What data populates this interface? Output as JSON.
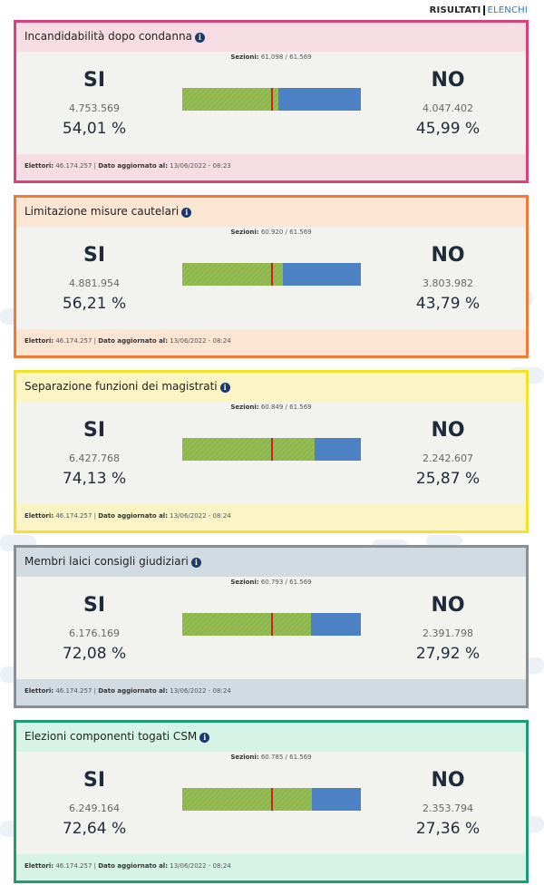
{
  "nav": {
    "active": "RISULTATI",
    "link": "ELENCHI"
  },
  "labels": {
    "sezioni": "Sezioni:",
    "elettori": "Elettori:",
    "aggiornato": "Dato aggiornato al:",
    "yes": "SI",
    "no": "NO"
  },
  "cards": [
    {
      "title": "Incandidabilità dopo condanna",
      "sezioni": "61.098 / 61.569",
      "si_votes": "4.753.569",
      "si_pct": "54,01 %",
      "no_votes": "4.047.402",
      "no_pct": "45,99 %",
      "si_fraction": 0.5401,
      "elettori": "46.174.257",
      "aggiornato": "13/06/2022 - 08:23",
      "border_color": "#d9427b",
      "head_color": "#f6dde4"
    },
    {
      "title": "Limitazione misure cautelari",
      "sezioni": "60.920 / 61.569",
      "si_votes": "4.881.954",
      "si_pct": "56,21 %",
      "no_votes": "3.803.982",
      "no_pct": "43,79 %",
      "si_fraction": 0.5621,
      "elettori": "46.174.257",
      "aggiornato": "13/06/2022 - 08:24",
      "border_color": "#f07a36",
      "head_color": "#fde5d3"
    },
    {
      "title": "Separazione funzioni dei magistrati",
      "sezioni": "60.849 / 61.569",
      "si_votes": "6.427.768",
      "si_pct": "74,13 %",
      "no_votes": "2.242.607",
      "no_pct": "25,87 %",
      "si_fraction": 0.7413,
      "elettori": "46.174.257",
      "aggiornato": "13/06/2022 - 08:24",
      "border_color": "#f2e22c",
      "head_color": "#fbf5c6"
    },
    {
      "title": "Membri laici consigli giudiziari",
      "sezioni": "60.793 / 61.569",
      "si_votes": "6.176.169",
      "si_pct": "72,08 %",
      "no_votes": "2.391.798",
      "no_pct": "27,92 %",
      "si_fraction": 0.7208,
      "elettori": "46.174.257",
      "aggiornato": "13/06/2022 - 08:24",
      "border_color": "#8a8f96",
      "head_color": "#d3dbe2"
    },
    {
      "title": "Elezioni componenti togati CSM",
      "sezioni": "60.785 / 61.569",
      "si_votes": "6.249.164",
      "si_pct": "72,64 %",
      "no_votes": "2.353.794",
      "no_pct": "27,36 %",
      "si_fraction": 0.7264,
      "elettori": "46.174.257",
      "aggiornato": "13/06/2022 - 08:24",
      "border_color": "#1f9d72",
      "head_color": "#d6f3e8"
    }
  ]
}
